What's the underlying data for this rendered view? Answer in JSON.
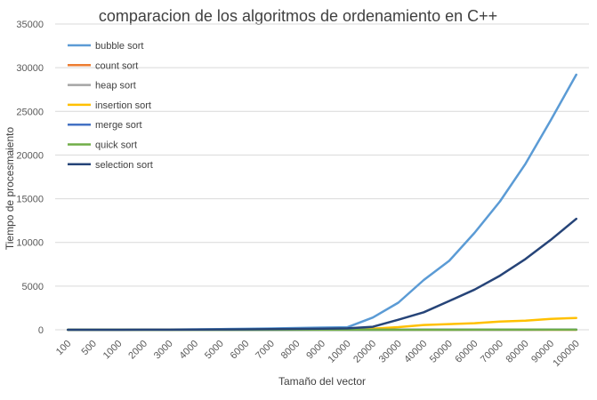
{
  "chart_data": {
    "type": "line",
    "title": "comparacion de los algoritmos de ordenamiento en C++",
    "xlabel": "Tamaño del vector",
    "ylabel": "Tiempo de procesmaiento",
    "ylim": [
      0,
      35000
    ],
    "yticks": [
      "0",
      "5000",
      "10000",
      "15000",
      "20000",
      "25000",
      "30000",
      "35000"
    ],
    "categories": [
      "100",
      "500",
      "1000",
      "2000",
      "3000",
      "4000",
      "5000",
      "6000",
      "7000",
      "8000",
      "9000",
      "10000",
      "20000",
      "30000",
      "40000",
      "50000",
      "60000",
      "70000",
      "80000",
      "90000",
      "100000"
    ],
    "grid": true,
    "legend_position": "top-left",
    "series": [
      {
        "name": "bubble sort",
        "color": "#5B9BD5",
        "values": [
          0,
          1,
          3,
          12,
          28,
          50,
          78,
          110,
          150,
          200,
          250,
          300,
          1400,
          3100,
          5700,
          7900,
          11100,
          14700,
          19000,
          24000,
          29200
        ]
      },
      {
        "name": "count sort",
        "color": "#ED7D31",
        "values": [
          0,
          0,
          0,
          0,
          0,
          0,
          0,
          0,
          0,
          0,
          0,
          0,
          0,
          0,
          0,
          0,
          0,
          0,
          0,
          0,
          0
        ]
      },
      {
        "name": "heap sort",
        "color": "#A5A5A5",
        "values": [
          0,
          0,
          0,
          0,
          1,
          1,
          1,
          1,
          1,
          2,
          2,
          2,
          4,
          6,
          8,
          10,
          12,
          14,
          16,
          18,
          20
        ]
      },
      {
        "name": "insertion sort",
        "color": "#FFC000",
        "values": [
          0,
          0,
          1,
          2,
          4,
          6,
          9,
          13,
          17,
          22,
          28,
          35,
          130,
          310,
          550,
          650,
          750,
          950,
          1050,
          1250,
          1350
        ]
      },
      {
        "name": "merge sort",
        "color": "#4472C4",
        "values": [
          0,
          0,
          0,
          0,
          1,
          1,
          1,
          1,
          1,
          1,
          2,
          2,
          3,
          5,
          7,
          9,
          11,
          13,
          15,
          17,
          19
        ]
      },
      {
        "name": "quick sort",
        "color": "#70AD47",
        "values": [
          0,
          0,
          0,
          0,
          0,
          0,
          0,
          0,
          0,
          1,
          1,
          1,
          2,
          3,
          4,
          5,
          6,
          7,
          8,
          9,
          10
        ]
      },
      {
        "name": "selection sort",
        "color": "#264478",
        "values": [
          0,
          1,
          2,
          6,
          14,
          25,
          40,
          55,
          75,
          100,
          130,
          160,
          350,
          1150,
          2000,
          3300,
          4600,
          6200,
          8100,
          10300,
          12700
        ]
      }
    ]
  }
}
